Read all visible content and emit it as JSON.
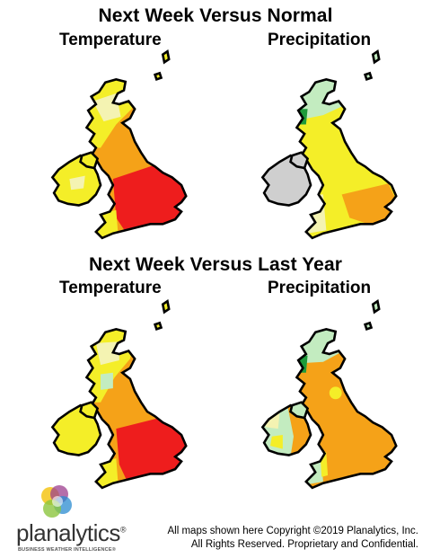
{
  "sections": {
    "normal_title": "Next Week Versus Normal",
    "last_year_title": "Next Week Versus Last Year"
  },
  "maps": {
    "temperature_label": "Temperature",
    "precipitation_label": "Precipitation"
  },
  "colors": {
    "red": "#ee1d1d",
    "orange": "#f5a218",
    "yellow": "#f4ee28",
    "pale_yellow": "#f4f3b2",
    "light_green": "#c3ecc0",
    "dark_green": "#1e9a3a",
    "gray": "#cfcfcf",
    "outline": "#000000"
  },
  "logo": {
    "brand": "planalytics",
    "registered_mark": "®",
    "tagline": "BUSINESS WEATHER INTELLIGENCE®"
  },
  "copyright": {
    "line1": "All maps shown here Copyright ©2019 Planalytics, Inc.",
    "line2": "All Rights Reserved. Proprietary and Confidential."
  }
}
